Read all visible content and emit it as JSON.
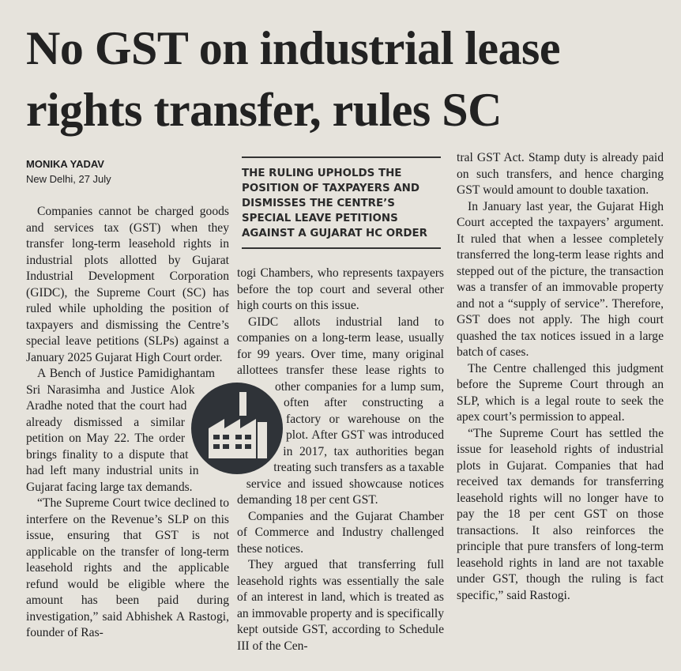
{
  "headline": "No GST on industrial lease rights transfer, rules SC",
  "byline": {
    "author": "MONIKA YADAV",
    "dateline": "New Delhi, 27 July"
  },
  "pull_quote": "THE RULING UPHOLDS THE POSITION OF TAXPAYERS AND DISMISSES THE CENTRE’S SPECIAL LEAVE PETITIONS AGAINST A GUJARAT HC ORDER",
  "columns": [
    [
      "Companies cannot be charged goods and services tax (GST) when they transfer long-term leasehold rights in industrial plots allotted by Gujarat Industrial Development Corporation (GIDC), the Supreme Court (SC) has ruled while upholding the position of taxpayers and dismissing the Centre’s special leave petitions (SLPs) against a January 2025 Gujarat High Court order.",
      "A Bench of Justice Pamidighantam Sri Narasimha and Justice Alok Aradhe noted that the court had already dismissed a similar petition on May 22. The order brings finality to a dispute that had left many industrial units in Gujarat facing large tax demands.",
      "“The Supreme Court twice declined to interfere on the Revenue’s SLP on this issue, ensuring that GST is not applicable on the transfer of long-term leasehold rights and the applicable refund would be eligible where the amount has been paid during investigation,” said Abhishek A Rastogi, founder of Ras-"
    ],
    [
      "togi Chambers, who represents taxpayers before the top court and several other high courts on this issue.",
      "GIDC allots industrial land to companies on a long-term lease, usually for 99 years. Over time, many original allottees transfer these lease rights to other companies for a lump sum, often after constructing a factory or warehouse on the plot. After GST was introduced in 2017, tax authorities began treating such transfers as a taxable service and issued showcause notices demanding 18 per cent GST.",
      "Companies and the Gujarat Chamber of Commerce and Industry challenged these notices.",
      "They argued that transferring full leasehold rights was essentially the sale of an interest in land, which is treated as an immovable property and is specifically kept outside GST, according to Schedule III of the Cen-"
    ],
    [
      "tral GST Act. Stamp duty is already paid on such transfers, and hence charging GST would amount to double taxation.",
      "In January last year, the Gujarat High Court accepted the taxpayers’ argument. It ruled that when a lessee completely transferred the long-term lease rights and stepped out of the picture, the transaction was a transfer of an immovable property and not a “supply of service”. Therefore, GST does not apply. The high court quashed the tax notices issued in a large batch of cases.",
      "The Centre challenged this judgment before the Supreme Court through an SLP, which is a legal route to seek the apex court’s permission to appeal.",
      "“The Supreme Court has settled the issue for leasehold rights of industrial plots in Gujarat. Companies that had received tax demands for transferring leasehold rights will no longer have to pay the 18 per cent GST on those transactions. It also reinforces the principle that pure transfers of long-term leasehold rights in land are not taxable under GST, though the ruling is fact specific,” said Rastogi."
    ]
  ]
}
